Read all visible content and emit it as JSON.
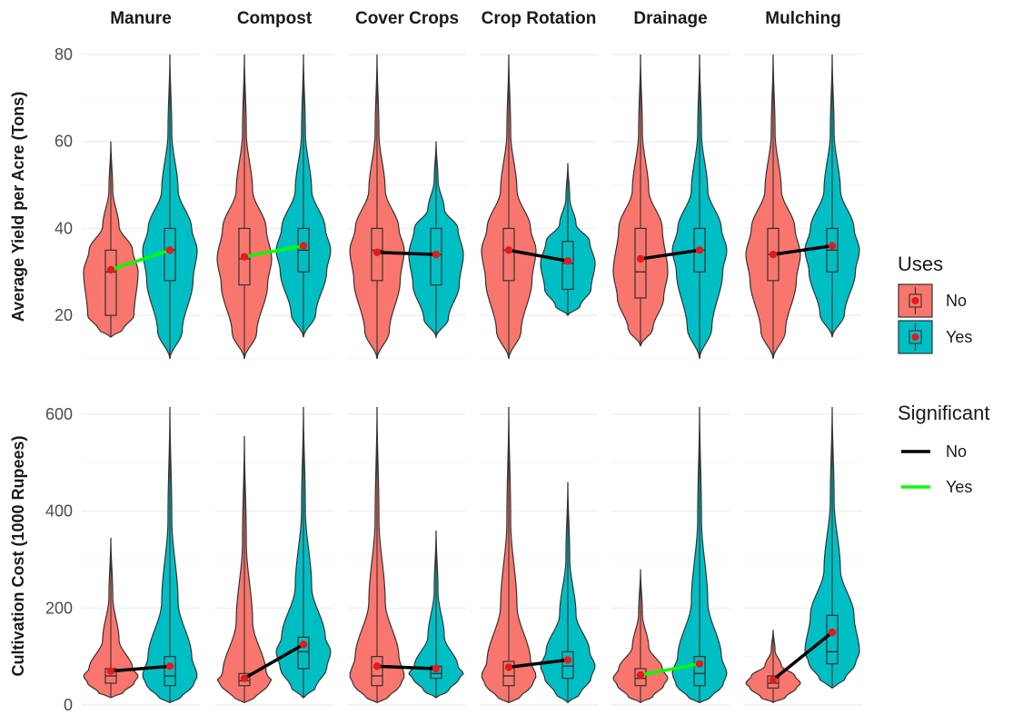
{
  "chart_data": {
    "type": "violin",
    "facets": [
      "Manure",
      "Compost",
      "Cover Crops",
      "Crop Rotation",
      "Drainage",
      "Mulching"
    ],
    "groups": [
      "No",
      "Yes"
    ],
    "colors": {
      "No": "#F8766D",
      "Yes": "#00BFC4",
      "median_point": "#e41a1c",
      "sig_no": "#000000",
      "sig_yes": "#00ff00"
    },
    "legend": {
      "uses_title": "Uses",
      "uses_labels": [
        "No",
        "Yes"
      ],
      "significant_title": "Significant",
      "significant_labels": [
        "No",
        "Yes"
      ]
    },
    "rows": [
      {
        "ylabel": "Average Yield per Acre (Tons)",
        "ylim": [
          10,
          80
        ],
        "yticks": [
          20,
          40,
          60,
          80
        ],
        "panels": [
          {
            "facet": "Manure",
            "significant": "Yes",
            "No": {
              "min": 15,
              "q1": 20,
              "median": 30,
              "q3": 35,
              "max": 60,
              "mean": 30.5
            },
            "Yes": {
              "min": 10,
              "q1": 28,
              "median": 35,
              "q3": 40,
              "max": 80,
              "mean": 35
            }
          },
          {
            "facet": "Compost",
            "significant": "Yes",
            "No": {
              "min": 10,
              "q1": 27,
              "median": 33,
              "q3": 40,
              "max": 80,
              "mean": 33.5
            },
            "Yes": {
              "min": 15,
              "q1": 30,
              "median": 35,
              "q3": 40,
              "max": 80,
              "mean": 36
            }
          },
          {
            "facet": "Cover Crops",
            "significant": "No",
            "No": {
              "min": 10,
              "q1": 28,
              "median": 35,
              "q3": 40,
              "max": 80,
              "mean": 34.5
            },
            "Yes": {
              "min": 15,
              "q1": 27,
              "median": 34,
              "q3": 40,
              "max": 60,
              "mean": 34
            }
          },
          {
            "facet": "Crop Rotation",
            "significant": "No",
            "No": {
              "min": 10,
              "q1": 28,
              "median": 35,
              "q3": 40,
              "max": 80,
              "mean": 35
            },
            "Yes": {
              "min": 20,
              "q1": 26,
              "median": 32,
              "q3": 37,
              "max": 55,
              "mean": 32.5
            }
          },
          {
            "facet": "Drainage",
            "significant": "No",
            "No": {
              "min": 13,
              "q1": 24,
              "median": 30,
              "q3": 40,
              "max": 80,
              "mean": 33
            },
            "Yes": {
              "min": 10,
              "q1": 30,
              "median": 35,
              "q3": 40,
              "max": 80,
              "mean": 35
            }
          },
          {
            "facet": "Mulching",
            "significant": "No",
            "No": {
              "min": 10,
              "q1": 28,
              "median": 34,
              "q3": 40,
              "max": 80,
              "mean": 34
            },
            "Yes": {
              "min": 15,
              "q1": 30,
              "median": 35,
              "q3": 40,
              "max": 80,
              "mean": 36
            }
          }
        ]
      },
      {
        "ylabel": "Cultivation Cost (1000 Rupees)",
        "ylim": [
          0,
          615
        ],
        "yticks": [
          0,
          200,
          400,
          600
        ],
        "panels": [
          {
            "facet": "Manure",
            "significant": "No",
            "No": {
              "min": 15,
              "q1": 45,
              "median": 60,
              "q3": 75,
              "max": 345,
              "mean": 70
            },
            "Yes": {
              "min": 5,
              "q1": 40,
              "median": 60,
              "q3": 100,
              "max": 615,
              "mean": 80
            }
          },
          {
            "facet": "Compost",
            "significant": "No",
            "No": {
              "min": 5,
              "q1": 40,
              "median": 50,
              "q3": 65,
              "max": 555,
              "mean": 55
            },
            "Yes": {
              "min": 15,
              "q1": 75,
              "median": 110,
              "q3": 140,
              "max": 615,
              "mean": 125
            }
          },
          {
            "facet": "Cover Crops",
            "significant": "No",
            "No": {
              "min": 5,
              "q1": 40,
              "median": 60,
              "q3": 100,
              "max": 615,
              "mean": 80
            },
            "Yes": {
              "min": 15,
              "q1": 55,
              "median": 65,
              "q3": 80,
              "max": 360,
              "mean": 75
            }
          },
          {
            "facet": "Crop Rotation",
            "significant": "No",
            "No": {
              "min": 5,
              "q1": 40,
              "median": 60,
              "q3": 90,
              "max": 615,
              "mean": 78
            },
            "Yes": {
              "min": 5,
              "q1": 55,
              "median": 80,
              "q3": 110,
              "max": 460,
              "mean": 93
            }
          },
          {
            "facet": "Drainage",
            "significant": "Yes",
            "No": {
              "min": 5,
              "q1": 40,
              "median": 55,
              "q3": 75,
              "max": 280,
              "mean": 62
            },
            "Yes": {
              "min": 5,
              "q1": 40,
              "median": 65,
              "q3": 100,
              "max": 615,
              "mean": 85
            }
          },
          {
            "facet": "Mulching",
            "significant": "No",
            "No": {
              "min": 5,
              "q1": 35,
              "median": 45,
              "q3": 60,
              "max": 155,
              "mean": 52
            },
            "Yes": {
              "min": 35,
              "q1": 85,
              "median": 110,
              "q3": 185,
              "max": 615,
              "mean": 150
            }
          }
        ]
      }
    ]
  }
}
